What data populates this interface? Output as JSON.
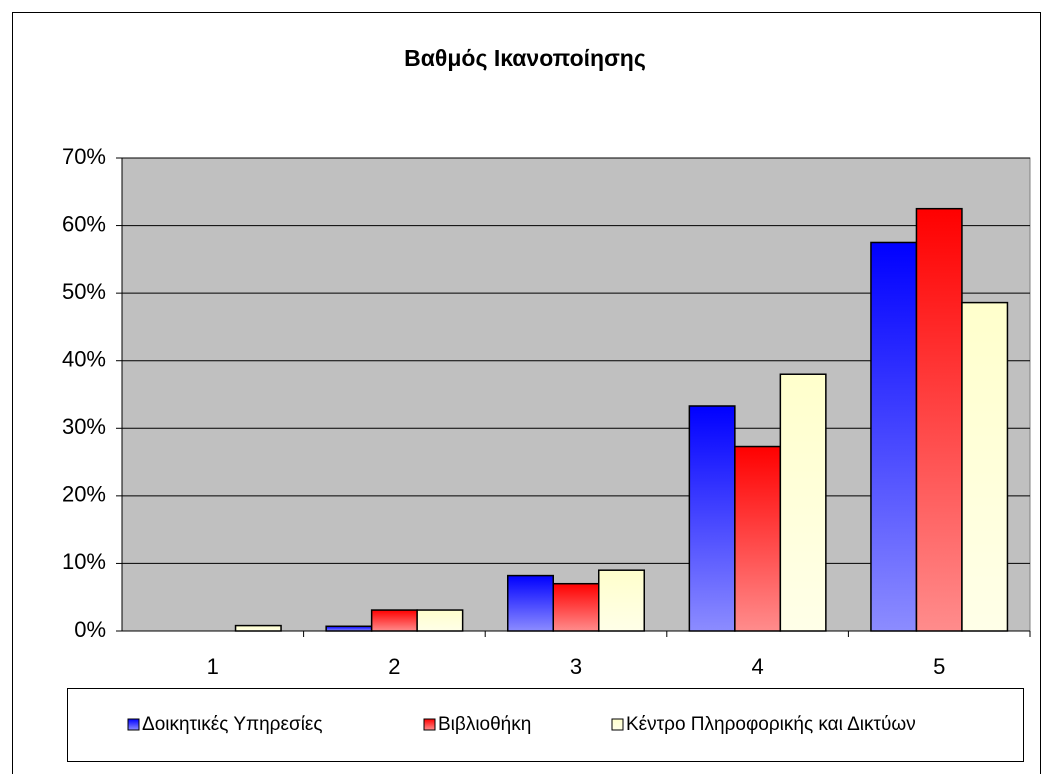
{
  "chart_data": {
    "type": "bar",
    "title": "Βαθμός Ικανοποίησης",
    "categories": [
      "1",
      "2",
      "3",
      "4",
      "5"
    ],
    "series": [
      {
        "name": "Δοικητικές Υπηρεσίες",
        "color": "#0000ff",
        "values": [
          0,
          0.7,
          8.2,
          33.3,
          57.5
        ]
      },
      {
        "name": "Βιβλιοθήκη",
        "color": "#ff0000",
        "values": [
          0,
          3.1,
          7.0,
          27.3,
          62.5
        ]
      },
      {
        "name": "Κέντρο Πληροφορικής και Δικτύων",
        "color": "#ffffcc",
        "values": [
          0.8,
          3.1,
          9.0,
          38.0,
          48.6
        ]
      }
    ],
    "ylim": [
      0,
      70
    ],
    "yticks": [
      {
        "value": 0,
        "label": "0%"
      },
      {
        "value": 10,
        "label": "10%"
      },
      {
        "value": 20,
        "label": "20%"
      },
      {
        "value": 30,
        "label": "30%"
      },
      {
        "value": 40,
        "label": "40%"
      },
      {
        "value": 50,
        "label": "50%"
      },
      {
        "value": 60,
        "label": "60%"
      },
      {
        "value": 70,
        "label": "70%"
      }
    ],
    "grid": true,
    "legend": "bottom"
  }
}
